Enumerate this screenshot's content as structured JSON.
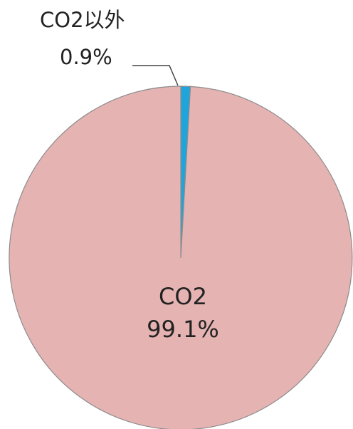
{
  "chart_data": {
    "type": "pie",
    "title": "",
    "slices": [
      {
        "label": "CO2以外",
        "value": 0.9,
        "value_label": "0.9%",
        "color": "#1fa5dc"
      },
      {
        "label": "CO2",
        "value": 99.1,
        "value_label": "99.1%",
        "color": "#e6b3b3"
      }
    ],
    "start_angle_deg": 0,
    "direction": "clockwise",
    "legend": "none",
    "outline_color": "#8c8c8c"
  }
}
